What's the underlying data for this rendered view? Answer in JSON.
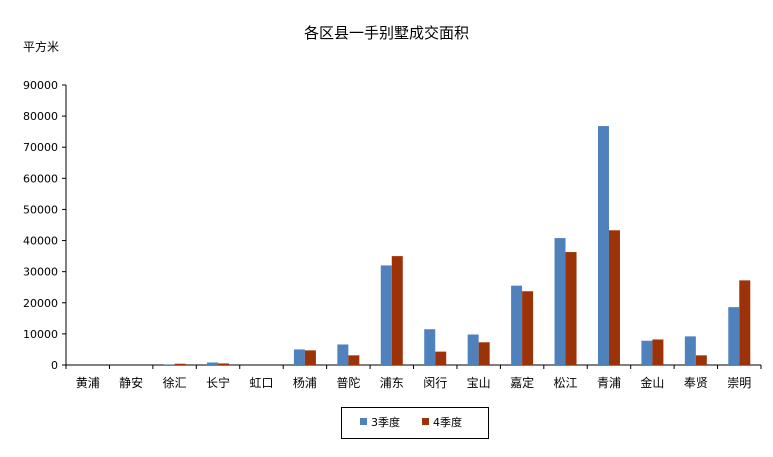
{
  "chart_data": {
    "type": "bar",
    "title": "各区县一手别墅成交面积",
    "ylabel": "平方米",
    "xlabel": "",
    "ylim": [
      0,
      90000
    ],
    "yticks": [
      0,
      10000,
      20000,
      30000,
      40000,
      50000,
      60000,
      70000,
      80000,
      90000
    ],
    "grid": false,
    "legend_position": "bottom",
    "categories": [
      "黄浦",
      "静安",
      "徐汇",
      "长宁",
      "虹口",
      "杨浦",
      "普陀",
      "浦东",
      "闵行",
      "宝山",
      "嘉定",
      "松江",
      "青浦",
      "金山",
      "奉贤",
      "崇明"
    ],
    "series": [
      {
        "name": "3季度",
        "color": "#4f81bd",
        "values": [
          0,
          0,
          200,
          800,
          0,
          5000,
          6600,
          32000,
          11500,
          9800,
          25500,
          40800,
          76800,
          7800,
          9200,
          18600
        ]
      },
      {
        "name": "4季度",
        "color": "#9b3208",
        "values": [
          0,
          0,
          400,
          500,
          0,
          4700,
          3100,
          35000,
          4300,
          7300,
          23700,
          36300,
          43300,
          8200,
          3100,
          27200
        ]
      }
    ]
  }
}
